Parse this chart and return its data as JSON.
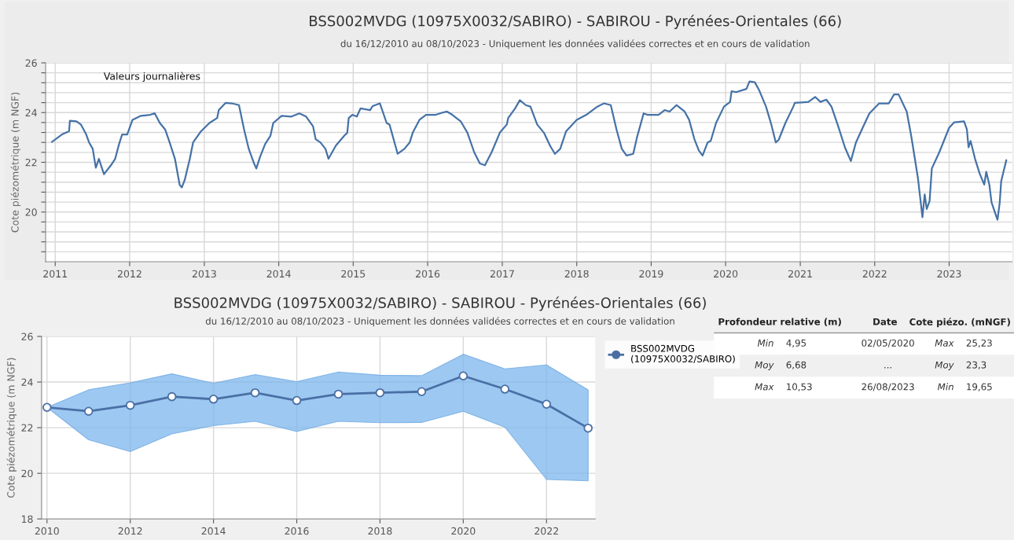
{
  "chart_data": [
    {
      "type": "line",
      "title": "BSS002MVDG (10975X0032/SABIRO) - SABIROU - Pyrénées-Orientales (66)",
      "subtitle": "du 16/12/2010 au 08/10/2023 - Uniquement les données validées correctes et en cours de validation",
      "ylabel": "Cote piézométrique (m NGF)",
      "annotations": [
        "Valeurs journalières"
      ],
      "x": [
        "2010-12-16",
        "2011-02-03",
        "2011-03-10",
        "2011-03-14",
        "2011-04-15",
        "2011-05-07",
        "2011-06-02",
        "2011-06-16",
        "2011-07-04",
        "2011-07-19",
        "2011-08-03",
        "2011-08-28",
        "2011-10-01",
        "2011-10-22",
        "2011-11-10",
        "2011-11-25",
        "2011-12-20",
        "2012-01-15",
        "2012-02-25",
        "2012-04-11",
        "2012-05-03",
        "2012-05-28",
        "2012-06-23",
        "2012-07-15",
        "2012-08-10",
        "2012-09-02",
        "2012-09-13",
        "2012-09-27",
        "2012-10-22",
        "2012-11-07",
        "2012-12-16",
        "2013-01-26",
        "2013-03-05",
        "2013-03-13",
        "2013-04-15",
        "2013-05-17",
        "2013-06-20",
        "2013-07-15",
        "2013-08-07",
        "2013-09-02",
        "2013-09-13",
        "2013-10-01",
        "2013-10-26",
        "2013-11-21",
        "2013-12-05",
        "2014-01-15",
        "2014-03-04",
        "2014-04-12",
        "2014-05-15",
        "2014-06-18",
        "2014-07-01",
        "2014-07-24",
        "2014-08-18",
        "2014-09-02",
        "2014-10-08",
        "2014-11-17",
        "2014-12-03",
        "2014-12-10",
        "2014-12-28",
        "2015-01-19",
        "2015-02-06",
        "2015-03-25",
        "2015-04-06",
        "2015-05-12",
        "2015-06-14",
        "2015-06-28",
        "2015-08-07",
        "2015-09-09",
        "2015-10-05",
        "2015-10-20",
        "2015-11-22",
        "2015-12-24",
        "2016-02-10",
        "2016-03-14",
        "2016-04-05",
        "2016-05-01",
        "2016-06-11",
        "2016-07-14",
        "2016-08-16",
        "2016-09-13",
        "2016-10-08",
        "2016-11-10",
        "2016-12-20",
        "2017-01-23",
        "2017-01-30",
        "2017-03-05",
        "2017-03-28",
        "2017-04-26",
        "2017-05-19",
        "2017-06-21",
        "2017-07-24",
        "2017-08-23",
        "2017-09-16",
        "2017-10-12",
        "2017-11-10",
        "2018-01-01",
        "2018-02-17",
        "2018-04-12",
        "2018-05-15",
        "2018-06-17",
        "2018-07-15",
        "2018-08-10",
        "2018-09-02",
        "2018-10-05",
        "2018-10-23",
        "2018-11-25",
        "2018-12-13",
        "2019-02-06",
        "2019-03-08",
        "2019-04-01",
        "2019-05-05",
        "2019-06-14",
        "2019-07-06",
        "2019-08-01",
        "2019-08-23",
        "2019-09-10",
        "2019-10-05",
        "2019-10-20",
        "2019-11-15",
        "2019-12-24",
        "2020-01-23",
        "2020-01-30",
        "2020-02-21",
        "2020-04-12",
        "2020-04-27",
        "2020-05-23",
        "2020-06-14",
        "2020-07-17",
        "2020-08-12",
        "2020-09-03",
        "2020-09-17",
        "2020-10-20",
        "2020-11-28",
        "2020-12-05",
        "2021-02-10",
        "2021-03-15",
        "2021-04-10",
        "2021-05-09",
        "2021-06-03",
        "2021-07-06",
        "2021-08-08",
        "2021-09-06",
        "2021-10-01",
        "2021-11-03",
        "2021-12-06",
        "2022-01-23",
        "2022-03-11",
        "2022-04-06",
        "2022-04-28",
        "2022-06-07",
        "2022-06-29",
        "2022-07-17",
        "2022-08-01",
        "2022-08-23",
        "2022-09-03",
        "2022-09-13",
        "2022-09-27",
        "2022-10-08",
        "2022-11-14",
        "2023-01-01",
        "2023-01-26",
        "2023-03-15",
        "2023-03-29",
        "2023-04-06",
        "2023-04-16",
        "2023-05-08",
        "2023-05-30",
        "2023-06-22",
        "2023-07-02",
        "2023-07-17",
        "2023-07-28",
        "2023-08-26",
        "2023-09-06",
        "2023-09-13",
        "2023-10-08"
      ],
      "series": [
        {
          "color": "#4572a7",
          "values": [
            22.82,
            23.12,
            23.25,
            23.67,
            23.65,
            23.52,
            23.12,
            22.8,
            22.54,
            21.78,
            22.14,
            21.52,
            21.88,
            22.14,
            22.73,
            23.12,
            23.12,
            23.71,
            23.87,
            23.91,
            23.97,
            23.58,
            23.32,
            22.8,
            22.14,
            21.1,
            20.99,
            21.29,
            22.14,
            22.8,
            23.25,
            23.58,
            23.78,
            24.1,
            24.39,
            24.37,
            24.3,
            23.32,
            22.54,
            21.95,
            21.75,
            22.21,
            22.73,
            23.06,
            23.58,
            23.87,
            23.84,
            23.97,
            23.84,
            23.45,
            22.93,
            22.8,
            22.54,
            22.14,
            22.67,
            23.06,
            23.19,
            23.78,
            23.91,
            23.84,
            24.17,
            24.1,
            24.26,
            24.37,
            23.58,
            23.52,
            22.34,
            22.54,
            22.8,
            23.19,
            23.71,
            23.91,
            23.91,
            24.0,
            24.04,
            23.91,
            23.65,
            23.19,
            22.41,
            21.95,
            21.88,
            22.41,
            23.19,
            23.52,
            23.78,
            24.17,
            24.5,
            24.3,
            24.24,
            23.52,
            23.19,
            22.67,
            22.34,
            22.54,
            23.25,
            23.71,
            23.91,
            24.24,
            24.37,
            24.3,
            23.32,
            22.54,
            22.27,
            22.34,
            22.99,
            23.97,
            23.91,
            23.91,
            24.1,
            24.04,
            24.3,
            24.04,
            23.71,
            22.93,
            22.47,
            22.27,
            22.8,
            22.86,
            23.58,
            24.24,
            24.43,
            24.86,
            24.82,
            24.95,
            25.25,
            25.22,
            24.89,
            24.24,
            23.52,
            22.8,
            22.9,
            23.58,
            24.24,
            24.39,
            24.43,
            24.63,
            24.43,
            24.52,
            24.24,
            23.45,
            22.6,
            22.05,
            22.8,
            23.39,
            23.97,
            24.37,
            24.37,
            24.73,
            24.73,
            24.04,
            23.06,
            22.14,
            21.36,
            19.79,
            20.71,
            20.12,
            20.44,
            21.75,
            22.41,
            23.39,
            23.61,
            23.65,
            23.32,
            22.6,
            22.86,
            22.14,
            21.56,
            21.1,
            21.62,
            21.1,
            20.38,
            19.69,
            20.38,
            21.23,
            22.08
          ]
        }
      ],
      "xlim": [
        "2010-11-15",
        "2023-11-05"
      ],
      "ylim": [
        18,
        26
      ],
      "xticks": [
        {
          "value": "2011-01-01",
          "label": "2011"
        },
        {
          "value": "2012-01-01",
          "label": "2012"
        },
        {
          "value": "2013-01-01",
          "label": "2013"
        },
        {
          "value": "2014-01-01",
          "label": "2014"
        },
        {
          "value": "2015-01-01",
          "label": "2015"
        },
        {
          "value": "2016-01-01",
          "label": "2016"
        },
        {
          "value": "2017-01-01",
          "label": "2017"
        },
        {
          "value": "2018-01-01",
          "label": "2018"
        },
        {
          "value": "2019-01-01",
          "label": "2019"
        },
        {
          "value": "2020-01-01",
          "label": "2020"
        },
        {
          "value": "2021-01-01",
          "label": "2021"
        },
        {
          "value": "2022-01-01",
          "label": "2022"
        },
        {
          "value": "2023-01-01",
          "label": "2023"
        }
      ],
      "yticks": [
        {
          "value": 18.4,
          "label": null
        },
        {
          "value": 18.8,
          "label": null
        },
        {
          "value": 19.2,
          "label": null
        },
        {
          "value": 19.6,
          "label": null
        },
        20,
        {
          "value": 20.4,
          "label": null
        },
        {
          "value": 20.8,
          "label": null
        },
        {
          "value": 21.2,
          "label": null
        },
        {
          "value": 21.6,
          "label": null
        },
        22,
        {
          "value": 22.4,
          "label": null
        },
        {
          "value": 22.8,
          "label": null
        },
        {
          "value": 23.2,
          "label": null
        },
        {
          "value": 23.6,
          "label": null
        },
        24,
        {
          "value": 24.4,
          "label": null
        },
        {
          "value": 24.8,
          "label": null
        },
        {
          "value": 25.2,
          "label": null
        },
        {
          "value": 25.6,
          "label": null
        },
        26
      ],
      "grid": true,
      "marker": "none",
      "line_style": "solid"
    },
    {
      "type": "line",
      "title": "BSS002MVDG (10975X0032/SABIRO) - SABIROU - Pyrénées-Orientales (66)",
      "subtitle": "du 16/12/2010 au 08/10/2023 - Uniquement les données validées correctes et en cours de validation",
      "ylabel": "Cote piézométrique (m NGF)",
      "x": [
        2010,
        2011,
        2012,
        2013,
        2014,
        2015,
        2016,
        2017,
        2018,
        2019,
        2020,
        2021,
        2022,
        2023
      ],
      "series": [
        {
          "name": "BSS002MVDG (10975X0032/SABIRO)",
          "color": "#4a6fa5",
          "values": [
            22.89,
            22.72,
            22.98,
            23.36,
            23.25,
            23.53,
            23.19,
            23.47,
            23.53,
            23.58,
            24.27,
            23.69,
            23.03,
            21.98
          ],
          "lower": [
            22.89,
            21.47,
            20.95,
            21.73,
            22.09,
            22.28,
            21.83,
            22.28,
            22.22,
            22.23,
            22.72,
            22.02,
            19.73,
            19.67
          ],
          "upper": [
            22.89,
            23.66,
            23.97,
            24.36,
            23.95,
            24.33,
            24.02,
            24.44,
            24.3,
            24.28,
            25.22,
            24.58,
            24.75,
            23.66
          ]
        }
      ],
      "xlim": [
        2009.87,
        2023.17
      ],
      "ylim": [
        18,
        26
      ],
      "xticks": [
        2010,
        2012,
        2014,
        2016,
        2018,
        2020,
        2022
      ],
      "yticks": [
        18,
        20,
        22,
        24,
        26
      ],
      "grid": true,
      "legend": "right",
      "marker": "circle",
      "line_style": "solid"
    },
    {
      "type": "other",
      "categories": [
        "Profondeur relative (m)",
        "Date",
        "Cote piézo. (mNGF)"
      ],
      "cell_labels": [
        [
          "Min",
          "4,95",
          "02/05/2020",
          "Max",
          "25,23"
        ],
        [
          "Moy",
          "6,68",
          "...",
          "Moy",
          "23,3"
        ],
        [
          "Max",
          "10,53",
          "26/08/2023",
          "Min",
          "19,65"
        ]
      ]
    }
  ]
}
